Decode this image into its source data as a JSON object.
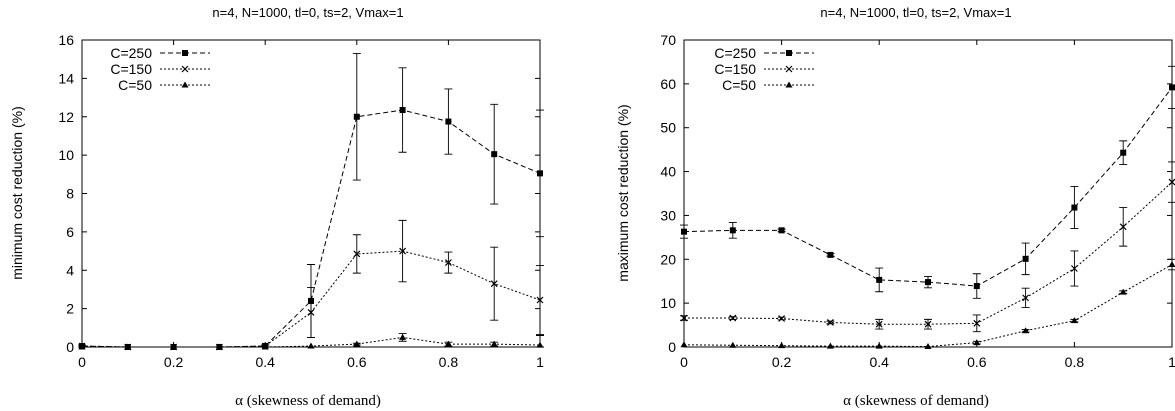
{
  "chart_data": [
    {
      "type": "line",
      "title": "n=4, N=1000, tl=0, ts=2, Vmax=1",
      "xlabel": "α (skewness of demand)",
      "ylabel": "minimum cost reduction (%)",
      "xlim": [
        0,
        1
      ],
      "ylim": [
        0,
        16
      ],
      "xticks": [
        "0",
        "0.2",
        "0.4",
        "0.6",
        "0.8",
        "1"
      ],
      "xtick_values": [
        0,
        0.2,
        0.4,
        0.6,
        0.8,
        1
      ],
      "yticks": [
        "0",
        "2",
        "4",
        "6",
        "8",
        "10",
        "12",
        "14",
        "16"
      ],
      "ytick_values": [
        0,
        2,
        4,
        6,
        8,
        10,
        12,
        14,
        16
      ],
      "legend_position": "top-left",
      "x": [
        0,
        0.1,
        0.2,
        0.3,
        0.4,
        0.5,
        0.6,
        0.7,
        0.8,
        0.9,
        1.0
      ],
      "series": [
        {
          "name": "C=250",
          "marker": "square",
          "dash": "dashed",
          "values": [
            0.05,
            0.0,
            0.0,
            0.0,
            0.05,
            2.4,
            12.0,
            12.35,
            11.75,
            10.05,
            9.05
          ],
          "error": [
            0.05,
            0,
            0,
            0,
            0.05,
            1.9,
            3.3,
            2.2,
            1.7,
            2.6,
            3.3
          ]
        },
        {
          "name": "C=150",
          "marker": "x",
          "dash": "dotted",
          "values": [
            0.05,
            0.0,
            0.0,
            0.0,
            0.05,
            1.8,
            4.85,
            5.0,
            4.4,
            3.3,
            2.45
          ],
          "error": [
            0.05,
            0,
            0,
            0,
            0.05,
            1.3,
            1.0,
            1.6,
            0.55,
            1.9,
            1.8
          ]
        },
        {
          "name": "C=50",
          "marker": "triangle",
          "dash": "dotted",
          "values": [
            0.0,
            0.0,
            0.0,
            0.0,
            0.0,
            0.05,
            0.15,
            0.5,
            0.15,
            0.15,
            0.1
          ],
          "error": [
            0,
            0,
            0,
            0,
            0,
            0,
            0.05,
            0.2,
            0.1,
            0.1,
            0.5
          ]
        }
      ]
    },
    {
      "type": "line",
      "title": "n=4, N=1000, tl=0, ts=2, Vmax=1",
      "xlabel": "α (skewness of demand)",
      "ylabel": "maximum cost reduction (%)",
      "xlim": [
        0,
        1
      ],
      "ylim": [
        0,
        70
      ],
      "xticks": [
        "0",
        "0.2",
        "0.4",
        "0.6",
        "0.8",
        "1"
      ],
      "xtick_values": [
        0,
        0.2,
        0.4,
        0.6,
        0.8,
        1
      ],
      "yticks": [
        "0",
        "10",
        "20",
        "30",
        "40",
        "50",
        "60",
        "70"
      ],
      "ytick_values": [
        0,
        10,
        20,
        30,
        40,
        50,
        60,
        70
      ],
      "legend_position": "top-left",
      "x": [
        0,
        0.1,
        0.2,
        0.3,
        0.4,
        0.5,
        0.6,
        0.7,
        0.8,
        0.9,
        1.0
      ],
      "series": [
        {
          "name": "C=250",
          "marker": "square",
          "dash": "dashed",
          "values": [
            26.3,
            26.6,
            26.6,
            21.0,
            15.3,
            14.8,
            13.9,
            20.1,
            31.8,
            44.3,
            59.2
          ],
          "error": [
            1.5,
            1.8,
            0.3,
            0.3,
            2.7,
            1.3,
            2.8,
            3.6,
            4.8,
            2.7,
            4.8
          ]
        },
        {
          "name": "C=150",
          "marker": "x",
          "dash": "dotted",
          "values": [
            6.6,
            6.6,
            6.5,
            5.6,
            5.2,
            5.2,
            5.4,
            11.2,
            17.9,
            27.4,
            37.6
          ],
          "error": [
            0.5,
            0.3,
            0.3,
            0.3,
            1.1,
            1.1,
            1.9,
            2.2,
            4.0,
            4.4,
            4.6
          ]
        },
        {
          "name": "C=50",
          "marker": "triangle",
          "dash": "dotted",
          "values": [
            0.5,
            0.4,
            0.3,
            0.2,
            0.2,
            0.1,
            1.0,
            3.7,
            6.0,
            12.5,
            18.8
          ],
          "error": [
            0,
            0,
            0,
            0,
            0,
            0,
            0.3,
            0.3,
            0.3,
            0.3,
            1.2
          ]
        }
      ]
    }
  ]
}
